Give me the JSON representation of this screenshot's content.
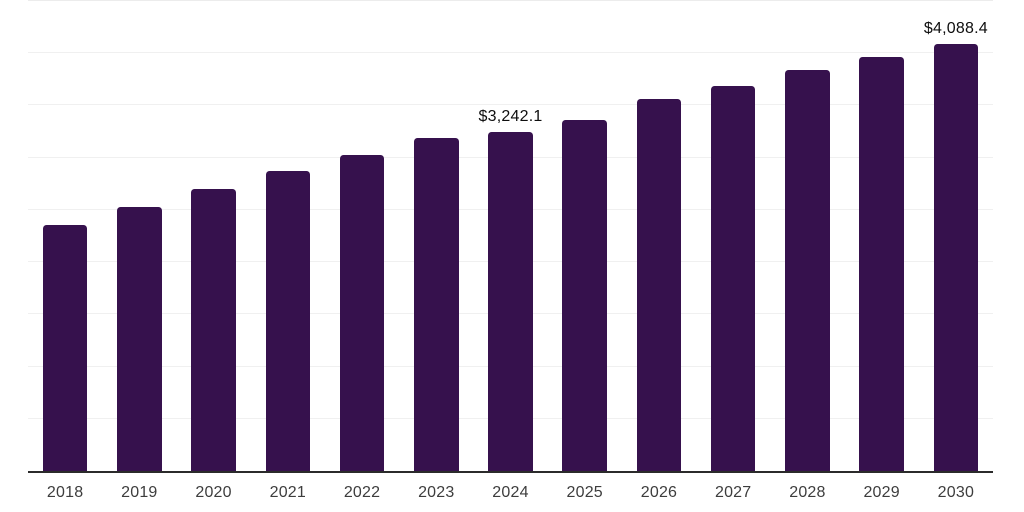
{
  "chart_data": {
    "type": "bar",
    "title": "",
    "xlabel": "",
    "ylabel": "",
    "categories": [
      "2018",
      "2019",
      "2020",
      "2021",
      "2022",
      "2023",
      "2024",
      "2025",
      "2026",
      "2027",
      "2028",
      "2029",
      "2030"
    ],
    "values": [
      2360,
      2525,
      2700,
      2870,
      3030,
      3190,
      3242.1,
      3360,
      3565,
      3690,
      3835,
      3960,
      4088.4
    ],
    "value_labels": [
      {
        "category": "2024",
        "index": 6,
        "text": "$3,242.1"
      },
      {
        "category": "2030",
        "index": 12,
        "text": "$4,088.4"
      }
    ],
    "values_note": "Only 2024 and 2030 carry data labels in the image; remaining values estimated from gridlines (500-unit spacing).",
    "ylim": [
      0,
      4500
    ],
    "gridline_step": 500,
    "grid": "horizontal-only",
    "legend": "none",
    "y_tick_labels_visible": false,
    "colors": {
      "bar": "#36114D",
      "axis_line": "#2b2b2b",
      "gridline": "#f0f0f0",
      "top_gridline": "#ececec",
      "x_tick_label": "#3d3d3d",
      "value_label": "#0e0e0e",
      "background": "#ffffff"
    }
  }
}
